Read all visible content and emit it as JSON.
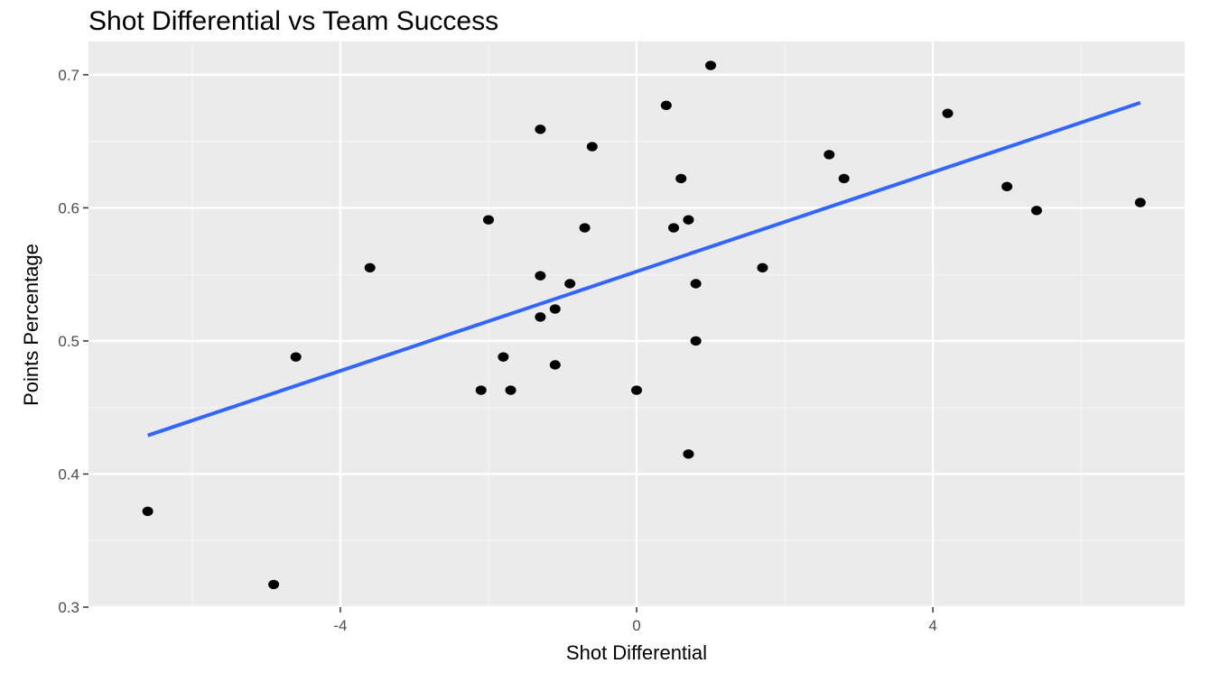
{
  "chart_data": {
    "type": "scatter",
    "title": "Shot Differential vs Team Success",
    "xlabel": "Shot Differential",
    "ylabel": "Points Percentage",
    "xlim": [
      -7.4,
      7.4
    ],
    "ylim": [
      0.3,
      0.725
    ],
    "x_ticks": [
      -4,
      0,
      4
    ],
    "y_ticks": [
      0.3,
      0.4,
      0.5,
      0.6,
      0.7
    ],
    "y_tick_labels": [
      "0.3",
      "0.4",
      "0.5",
      "0.6",
      "0.7"
    ],
    "x_tick_labels": [
      "-4",
      "0",
      "4"
    ],
    "grid": true,
    "colors": {
      "panel_background": "#ebebeb",
      "grid_major": "#ffffff",
      "grid_minor": "#f5f5f5",
      "point": "#000000",
      "trend_line": "#3366ff"
    },
    "points": [
      {
        "x": -6.6,
        "y": 0.372
      },
      {
        "x": -4.9,
        "y": 0.317
      },
      {
        "x": -4.6,
        "y": 0.488
      },
      {
        "x": -3.6,
        "y": 0.555
      },
      {
        "x": -2.1,
        "y": 0.463
      },
      {
        "x": -2.0,
        "y": 0.591
      },
      {
        "x": -1.8,
        "y": 0.488
      },
      {
        "x": -1.7,
        "y": 0.463
      },
      {
        "x": -1.3,
        "y": 0.659
      },
      {
        "x": -1.3,
        "y": 0.549
      },
      {
        "x": -1.3,
        "y": 0.518
      },
      {
        "x": -1.1,
        "y": 0.524
      },
      {
        "x": -1.1,
        "y": 0.482
      },
      {
        "x": -0.9,
        "y": 0.543
      },
      {
        "x": -0.7,
        "y": 0.585
      },
      {
        "x": -0.6,
        "y": 0.646
      },
      {
        "x": 0.0,
        "y": 0.463
      },
      {
        "x": 0.4,
        "y": 0.677
      },
      {
        "x": 0.5,
        "y": 0.585
      },
      {
        "x": 0.6,
        "y": 0.622
      },
      {
        "x": 0.7,
        "y": 0.591
      },
      {
        "x": 0.7,
        "y": 0.415
      },
      {
        "x": 0.8,
        "y": 0.543
      },
      {
        "x": 0.8,
        "y": 0.5
      },
      {
        "x": 1.0,
        "y": 0.707
      },
      {
        "x": 1.7,
        "y": 0.555
      },
      {
        "x": 2.6,
        "y": 0.64
      },
      {
        "x": 2.8,
        "y": 0.622
      },
      {
        "x": 4.2,
        "y": 0.671
      },
      {
        "x": 5.0,
        "y": 0.616
      },
      {
        "x": 5.4,
        "y": 0.598
      },
      {
        "x": 6.8,
        "y": 0.604
      }
    ],
    "trend_line": {
      "x": [
        -6.6,
        6.8
      ],
      "y": [
        0.429,
        0.679
      ]
    }
  }
}
